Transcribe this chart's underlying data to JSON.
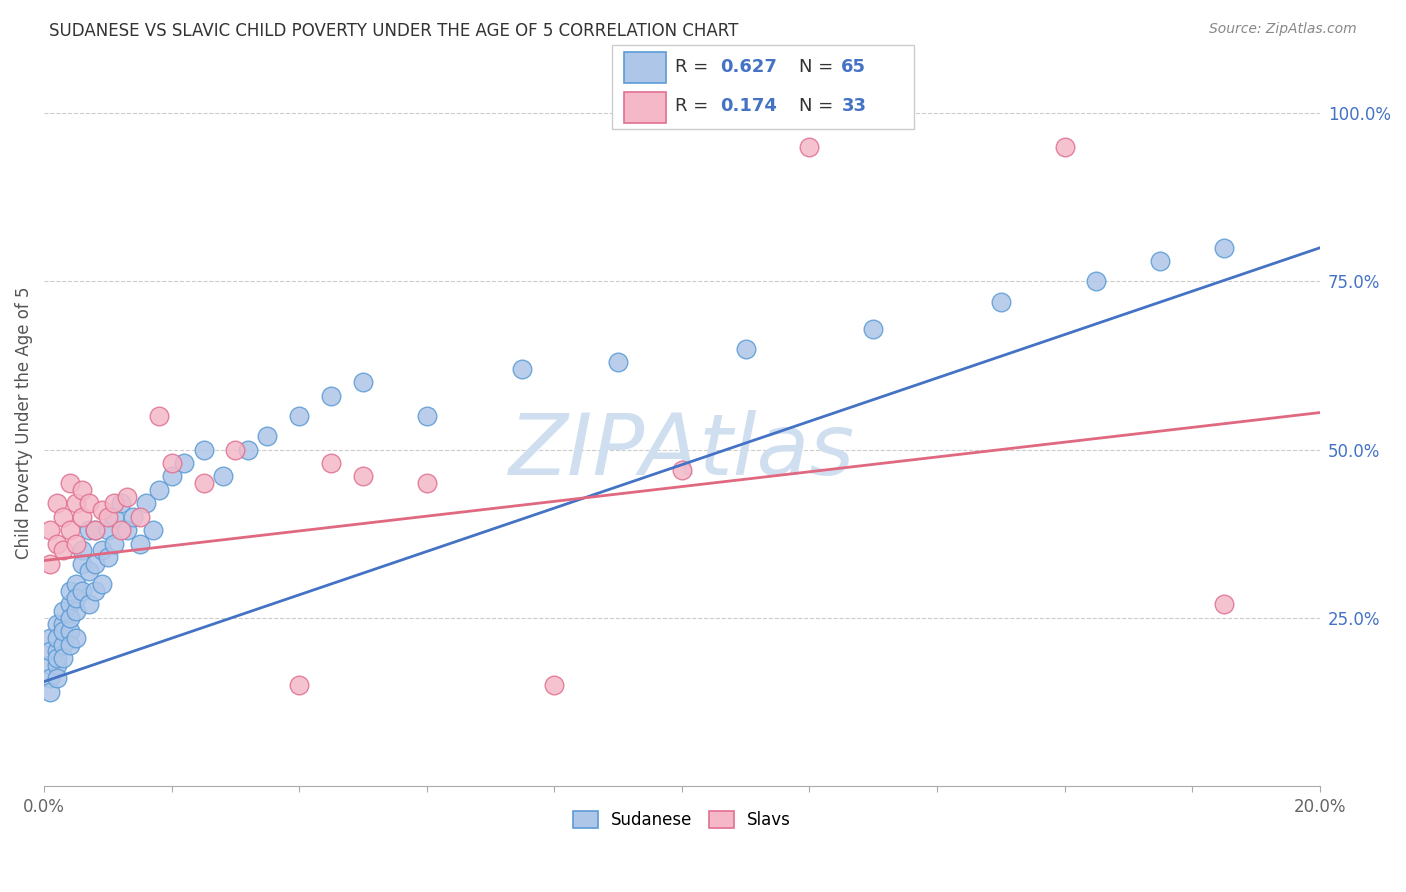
{
  "title": "SUDANESE VS SLAVIC CHILD POVERTY UNDER THE AGE OF 5 CORRELATION CHART",
  "source": "Source: ZipAtlas.com",
  "ylabel": "Child Poverty Under the Age of 5",
  "y_tick_labels": [
    "100.0%",
    "75.0%",
    "50.0%",
    "25.0%"
  ],
  "y_tick_positions": [
    1.0,
    0.75,
    0.5,
    0.25
  ],
  "x_range": [
    0.0,
    0.2
  ],
  "y_range": [
    0.0,
    1.08
  ],
  "sudanese_R": "0.627",
  "sudanese_N": "65",
  "slavs_R": "0.174",
  "slavs_N": "33",
  "sudanese_scatter_color": "#aec6e8",
  "slavs_scatter_color": "#f4b8c8",
  "sudanese_edge_color": "#5b9bd5",
  "slavs_edge_color": "#e07090",
  "line_sudanese_color": "#4472c4",
  "line_slavs_color": "#e06880",
  "watermark": "ZIPAtlas",
  "watermark_color": "#d0dff0",
  "legend_text_color": "#4472c4",
  "sud_line_x0": 0.0,
  "sud_line_y0": 0.155,
  "sud_line_x1": 0.2,
  "sud_line_y1": 0.8,
  "slav_line_x0": 0.0,
  "slav_line_y0": 0.335,
  "slav_line_x1": 0.2,
  "slav_line_y1": 0.555,
  "sudanese_x": [
    0.001,
    0.001,
    0.001,
    0.001,
    0.001,
    0.002,
    0.002,
    0.002,
    0.002,
    0.002,
    0.002,
    0.003,
    0.003,
    0.003,
    0.003,
    0.003,
    0.004,
    0.004,
    0.004,
    0.004,
    0.004,
    0.005,
    0.005,
    0.005,
    0.005,
    0.006,
    0.006,
    0.006,
    0.007,
    0.007,
    0.007,
    0.008,
    0.008,
    0.008,
    0.009,
    0.009,
    0.01,
    0.01,
    0.011,
    0.011,
    0.012,
    0.013,
    0.014,
    0.015,
    0.016,
    0.017,
    0.018,
    0.02,
    0.022,
    0.025,
    0.028,
    0.032,
    0.035,
    0.04,
    0.045,
    0.05,
    0.06,
    0.075,
    0.09,
    0.11,
    0.13,
    0.15,
    0.165,
    0.175,
    0.185
  ],
  "sudanese_y": [
    0.18,
    0.22,
    0.16,
    0.2,
    0.14,
    0.2,
    0.18,
    0.24,
    0.16,
    0.22,
    0.19,
    0.24,
    0.21,
    0.26,
    0.19,
    0.23,
    0.27,
    0.23,
    0.29,
    0.21,
    0.25,
    0.3,
    0.26,
    0.22,
    0.28,
    0.35,
    0.29,
    0.33,
    0.38,
    0.32,
    0.27,
    0.38,
    0.33,
    0.29,
    0.35,
    0.3,
    0.38,
    0.34,
    0.4,
    0.36,
    0.42,
    0.38,
    0.4,
    0.36,
    0.42,
    0.38,
    0.44,
    0.46,
    0.48,
    0.5,
    0.46,
    0.5,
    0.52,
    0.55,
    0.58,
    0.6,
    0.55,
    0.62,
    0.63,
    0.65,
    0.68,
    0.72,
    0.75,
    0.78,
    0.8
  ],
  "slavs_x": [
    0.001,
    0.001,
    0.002,
    0.002,
    0.003,
    0.003,
    0.004,
    0.004,
    0.005,
    0.005,
    0.006,
    0.006,
    0.007,
    0.008,
    0.009,
    0.01,
    0.011,
    0.012,
    0.013,
    0.015,
    0.018,
    0.02,
    0.025,
    0.03,
    0.04,
    0.045,
    0.05,
    0.06,
    0.08,
    0.1,
    0.12,
    0.16,
    0.185
  ],
  "slavs_y": [
    0.33,
    0.38,
    0.36,
    0.42,
    0.35,
    0.4,
    0.38,
    0.45,
    0.42,
    0.36,
    0.4,
    0.44,
    0.42,
    0.38,
    0.41,
    0.4,
    0.42,
    0.38,
    0.43,
    0.4,
    0.55,
    0.48,
    0.45,
    0.5,
    0.15,
    0.48,
    0.46,
    0.45,
    0.15,
    0.47,
    0.95,
    0.95,
    0.27
  ]
}
